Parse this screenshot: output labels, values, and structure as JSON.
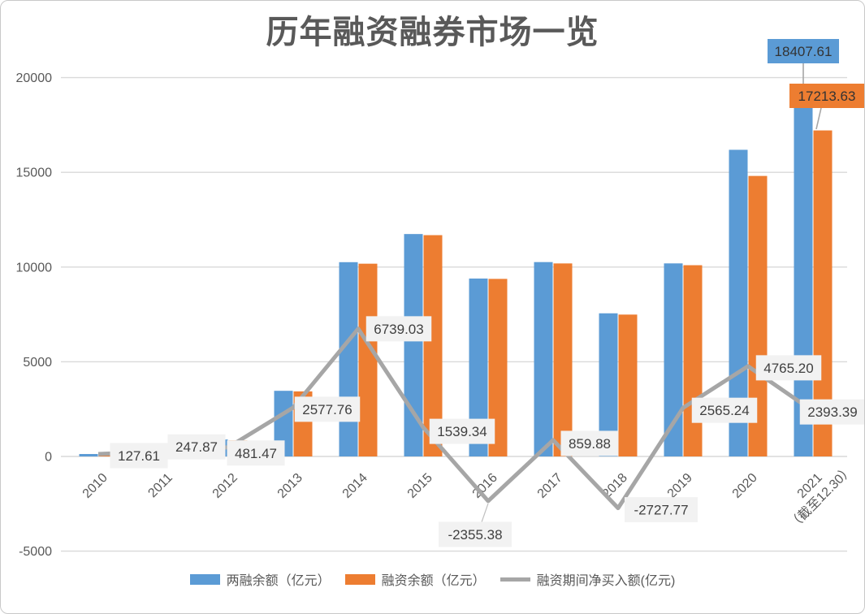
{
  "chart_data": {
    "type": "bar",
    "title": "历年融资融券市场一览",
    "categories": [
      "2010",
      "2011",
      "2012",
      "2013",
      "2014",
      "2015",
      "2016",
      "2017",
      "2018",
      "2019",
      "2020",
      "2021"
    ],
    "last_category_note": "（截至12.30）",
    "series": [
      {
        "name": "两融余额（亿元）",
        "type": "bar",
        "color": "#5B9BD5",
        "values": [
          128,
          382,
          895,
          3465,
          10257,
          11743,
          9393,
          10262,
          7557,
          10193,
          16190,
          18407.61
        ]
      },
      {
        "name": "融资余额（亿元）",
        "type": "bar",
        "color": "#ED7D31",
        "values": [
          128,
          366,
          848,
          3434,
          10177,
          11684,
          9375,
          10191,
          7490,
          10097,
          14810,
          17213.63
        ]
      },
      {
        "name": "融资期间净买入额(亿元)",
        "type": "line",
        "color": "#A6A6A6",
        "values": [
          127.61,
          247.87,
          481.47,
          2577.76,
          6739.03,
          1539.34,
          -2355.38,
          859.88,
          -2727.77,
          2565.24,
          4765.2,
          2393.39
        ],
        "labels": [
          "127.61",
          "247.87",
          "481.47",
          "2577.76",
          "6739.03",
          "1539.34",
          "-2355.38",
          "859.88",
          "-2727.77",
          "2565.24",
          "4765.20",
          "2393.39"
        ]
      }
    ],
    "bar_callouts": [
      {
        "text": "18407.61",
        "series_index": 0,
        "color": "#5B9BD5"
      },
      {
        "text": "17213.63",
        "series_index": 1,
        "color": "#ED7D31"
      }
    ],
    "y_axis": {
      "min": -5000,
      "max": 20000,
      "step": 5000,
      "ticks": [
        "-5000",
        "0",
        "5000",
        "10000",
        "15000",
        "20000"
      ]
    },
    "grid": true,
    "legend_position": "bottom",
    "colors": {
      "bar_blue": "#5B9BD5",
      "bar_orange": "#ED7D31",
      "line_gray": "#A6A6A6",
      "gridline": "#D9D9D9",
      "axis_text": "#595959",
      "label_box_bg": "#F2F2F2",
      "label_text": "#404040",
      "title_text": "#595959"
    }
  }
}
